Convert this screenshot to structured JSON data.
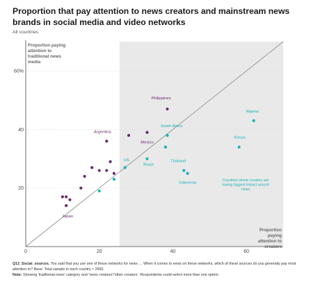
{
  "header": {
    "title": "Proportion that pay attention to news creators and mainstream news brands in social media and video networks",
    "subtitle": "All countries"
  },
  "footer": {
    "q_label": "Q12_Social_sources.",
    "q_text": "You said that you use one of these networks for news … When it comes to news on these networks, which of these sources do you generally pay most attention to? Base: Total sample in each country ≈ 2000.",
    "note_label": "Note:",
    "note_text": "Showing 'traditional news' category and 'news creators'/'other creators'. Respondents could select more than one option."
  },
  "colors": {
    "traditional_dot": "#6b2a6b",
    "creator_dot": "#16b3b8",
    "creator_region": "#e9e9e9",
    "diagonal": "#8a8a8a",
    "axis": "#444444",
    "gridline": "#dddddd"
  },
  "chart_data": {
    "type": "scatter",
    "xlabel": "Proportion paying attention to creators",
    "ylabel": "Proportion paying attention to traditional news media",
    "xlim": [
      0,
      70
    ],
    "ylim": [
      0,
      70
    ],
    "xticks": [
      0,
      20,
      40,
      60
    ],
    "yticks": [
      20,
      40,
      60
    ],
    "yticks_text": [
      "20",
      "40",
      "60%"
    ],
    "grid": "horizontal",
    "shaded_region_x_from": 25.5,
    "shaded_region_label": "Countries where creators are having biggest impact around news",
    "reference_line": "x = y",
    "points": [
      {
        "x": 38.5,
        "y": 47,
        "label": "Philippines",
        "group": "traditional"
      },
      {
        "x": 62,
        "y": 43,
        "label": "Nigeria",
        "group": "creator"
      },
      {
        "x": 58,
        "y": 34,
        "label": "Kenya",
        "group": "creator"
      },
      {
        "x": 38.5,
        "y": 38,
        "label": "South Africa",
        "group": "creator"
      },
      {
        "x": 38,
        "y": 34,
        "label": "",
        "group": "creator"
      },
      {
        "x": 43,
        "y": 26,
        "label": "Thailand",
        "group": "creator"
      },
      {
        "x": 44,
        "y": 25,
        "label": "Indonesia",
        "group": "creator"
      },
      {
        "x": 33,
        "y": 30,
        "label": "Brazil",
        "group": "creator"
      },
      {
        "x": 27,
        "y": 27,
        "label": "US",
        "group": "creator"
      },
      {
        "x": 33,
        "y": 39,
        "label": "Mexico",
        "group": "traditional"
      },
      {
        "x": 28,
        "y": 38,
        "label": "",
        "group": "traditional"
      },
      {
        "x": 22,
        "y": 36,
        "label": "Argentina",
        "group": "traditional"
      },
      {
        "x": 23,
        "y": 29,
        "label": "",
        "group": "traditional"
      },
      {
        "x": 22,
        "y": 26,
        "label": "",
        "group": "traditional"
      },
      {
        "x": 24,
        "y": 25,
        "label": "",
        "group": "traditional"
      },
      {
        "x": 24,
        "y": 23,
        "label": "",
        "group": "creator"
      },
      {
        "x": 20,
        "y": 26,
        "label": "",
        "group": "traditional"
      },
      {
        "x": 18,
        "y": 27,
        "label": "",
        "group": "traditional"
      },
      {
        "x": 16,
        "y": 24,
        "label": "",
        "group": "traditional"
      },
      {
        "x": 15,
        "y": 20,
        "label": "",
        "group": "traditional"
      },
      {
        "x": 20,
        "y": 19,
        "label": "",
        "group": "creator"
      },
      {
        "x": 10,
        "y": 17,
        "label": "",
        "group": "traditional"
      },
      {
        "x": 11,
        "y": 17,
        "label": "",
        "group": "traditional"
      },
      {
        "x": 12,
        "y": 16,
        "label": "",
        "group": "traditional"
      },
      {
        "x": 11,
        "y": 14,
        "label": "Japan",
        "group": "traditional"
      }
    ]
  }
}
